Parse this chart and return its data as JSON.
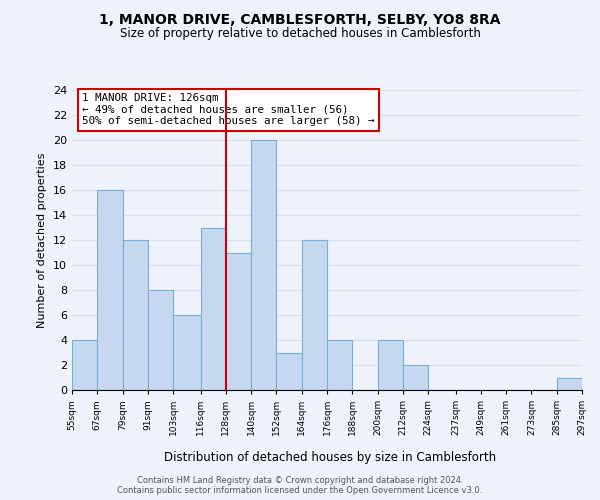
{
  "title": "1, MANOR DRIVE, CAMBLESFORTH, SELBY, YO8 8RA",
  "subtitle": "Size of property relative to detached houses in Camblesforth",
  "xlabel": "Distribution of detached houses by size in Camblesforth",
  "ylabel": "Number of detached properties",
  "bin_edges": [
    55,
    67,
    79,
    91,
    103,
    116,
    128,
    140,
    152,
    164,
    176,
    188,
    200,
    212,
    224,
    237,
    249,
    261,
    273,
    285,
    297
  ],
  "bin_labels": [
    "55sqm",
    "67sqm",
    "79sqm",
    "91sqm",
    "103sqm",
    "116sqm",
    "128sqm",
    "140sqm",
    "152sqm",
    "164sqm",
    "176sqm",
    "188sqm",
    "200sqm",
    "212sqm",
    "224sqm",
    "237sqm",
    "249sqm",
    "261sqm",
    "273sqm",
    "285sqm",
    "297sqm"
  ],
  "counts": [
    4,
    16,
    12,
    8,
    6,
    13,
    11,
    20,
    3,
    12,
    4,
    0,
    4,
    2,
    0,
    0,
    0,
    0,
    0,
    1
  ],
  "bar_color": "#c5d8f0",
  "bar_edgecolor": "#7aafd4",
  "vline_x": 128,
  "annotation_lines": [
    "1 MANOR DRIVE: 126sqm",
    "← 49% of detached houses are smaller (56)",
    "50% of semi-detached houses are larger (58) →"
  ],
  "vline_color": "#cc0000",
  "ylim": [
    0,
    24
  ],
  "yticks": [
    0,
    2,
    4,
    6,
    8,
    10,
    12,
    14,
    16,
    18,
    20,
    22,
    24
  ],
  "background_color": "#eef2fb",
  "grid_color": "#d8dff0",
  "footer_lines": [
    "Contains HM Land Registry data © Crown copyright and database right 2024.",
    "Contains public sector information licensed under the Open Government Licence v3.0."
  ]
}
